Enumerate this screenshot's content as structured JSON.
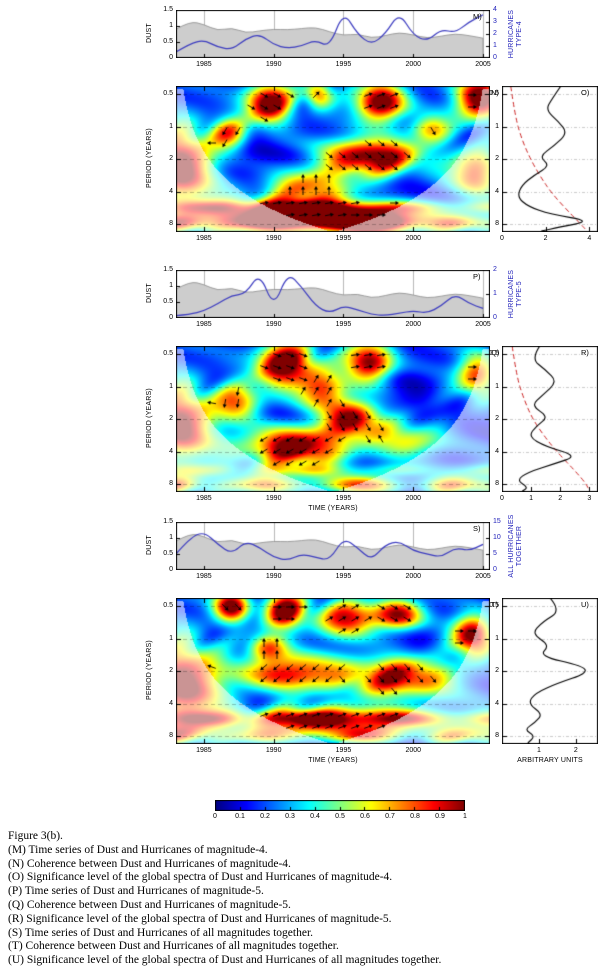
{
  "figure": {
    "caption_title": "Figure 3(b).",
    "caption_lines": [
      "(M) Time series of Dust and Hurricanes of magnitude-4.",
      "(N) Coherence between Dust and  Hurricanes of magnitude-4.",
      "(O) Significance level of the global spectra of Dust and Hurricanes of magnitude-4.",
      "(P) Time series of Dust and Hurricanes of magnitude-5.",
      "(Q) Coherence between Dust and Hurricanes of magnitude-5.",
      "(R) Significance level of the global spectra of Dust and Hurricanes of magnitude-5.",
      "(S) Time series of Dust and Hurricanes of all magnitudes together.",
      "(T) Coherence between Dust and Hurricanes of all magnitudes together.",
      "(U) Significance level of the global spectra of Dust and Hurricanes of all magnitudes together."
    ]
  },
  "colorbar": {
    "ticks": [
      "0",
      "0.1",
      "0.2",
      "0.3",
      "0.4",
      "0.5",
      "0.6",
      "0.7",
      "0.8",
      "0.9",
      "1"
    ]
  },
  "sections": [
    {
      "ids": {
        "ts": "M",
        "wv": "N",
        "sig": "O"
      },
      "letters": {
        "ts": "M)",
        "wv": "N)",
        "sig": "O)"
      },
      "labels": {
        "left": "DUST",
        "right": "HURRICANES\nTYPE-4",
        "period": "PERIOD (YEARS)",
        "time": "",
        "sig_x": ""
      },
      "ts": {
        "left_ticks": [
          "0",
          "0.5",
          "1",
          "1.5"
        ],
        "right_ticks": [
          "0",
          "1",
          "2",
          "3",
          "4"
        ],
        "x_ticks": [
          "1985",
          "1990",
          "1995",
          "2000",
          "2005"
        ]
      },
      "wv": {
        "y_ticks": [
          "0.5",
          "1",
          "2",
          "4",
          "8"
        ],
        "x_ticks": [
          "1985",
          "1990",
          "1995",
          "2000"
        ]
      },
      "sig": {
        "x_ticks": [
          "0",
          "2",
          "4"
        ]
      }
    },
    {
      "ids": {
        "ts": "P",
        "wv": "Q",
        "sig": "R"
      },
      "letters": {
        "ts": "P)",
        "wv": "Q)",
        "sig": "R)"
      },
      "labels": {
        "left": "DUST",
        "right": "HURRICANES\nTYPE-5",
        "period": "PERIOD (YEARS)",
        "time": "TIME (YEARS)",
        "sig_x": ""
      },
      "ts": {
        "left_ticks": [
          "0",
          "0.5",
          "1",
          "1.5"
        ],
        "right_ticks": [
          "0",
          "1",
          "2"
        ],
        "x_ticks": [
          "1985",
          "1990",
          "1995",
          "2000",
          "2005"
        ]
      },
      "wv": {
        "y_ticks": [
          "0.5",
          "1",
          "2",
          "4",
          "8"
        ],
        "x_ticks": [
          "1985",
          "1990",
          "1995",
          "2000"
        ]
      },
      "sig": {
        "x_ticks": [
          "0",
          "1",
          "2",
          "3"
        ]
      }
    },
    {
      "ids": {
        "ts": "S",
        "wv": "T",
        "sig": "U"
      },
      "letters": {
        "ts": "S)",
        "wv": "T)",
        "sig": "U)"
      },
      "labels": {
        "left": "DUST",
        "right": "ALL HURRICANES\nTOGETHER",
        "period": "PERIOD (YEARS)",
        "time": "TIME (YEARS)",
        "sig_x": "ARBITRARY UNITS"
      },
      "ts": {
        "left_ticks": [
          "0",
          "0.5",
          "1",
          "1.5"
        ],
        "right_ticks": [
          "0",
          "5",
          "10",
          "15"
        ],
        "x_ticks": [
          "1985",
          "1990",
          "1995",
          "2000",
          "2005"
        ]
      },
      "wv": {
        "y_ticks": [
          "0.5",
          "1",
          "2",
          "4",
          "8"
        ],
        "x_ticks": [
          "1985",
          "1990",
          "1995",
          "2000"
        ]
      },
      "sig": {
        "x_ticks": [
          "1",
          "2"
        ]
      }
    }
  ],
  "chart_data": [
    {
      "id": "M",
      "type": "area+line",
      "xlim": [
        1983,
        2005.5
      ],
      "dust_ylim": [
        0,
        1.5
      ],
      "hurr_ylim": [
        0,
        4
      ],
      "x": [
        1983,
        1984,
        1985,
        1986,
        1987,
        1988,
        1989,
        1990,
        1991,
        1992,
        1993,
        1994,
        1995,
        1996,
        1997,
        1998,
        1999,
        2000,
        2001,
        2002,
        2003,
        2004,
        2005
      ],
      "dust": [
        0.9,
        1.15,
        1.05,
        0.85,
        0.95,
        0.78,
        0.85,
        0.9,
        0.88,
        0.92,
        0.96,
        0.82,
        0.7,
        0.76,
        0.62,
        0.7,
        0.8,
        0.72,
        0.62,
        0.68,
        0.76,
        0.7,
        0.62
      ],
      "hurricanes": [
        0.5,
        1.2,
        1.5,
        0.9,
        0.7,
        1.6,
        2.0,
        1.1,
        0.8,
        1.0,
        1.5,
        0.9,
        3.9,
        2.0,
        1.1,
        2.0,
        3.8,
        1.9,
        1.4,
        2.4,
        2.1,
        3.0,
        3.6
      ]
    },
    {
      "id": "N",
      "type": "wavelet-coherence",
      "xlim": [
        1983,
        2005.5
      ],
      "period_lim": [
        0.42,
        9.5
      ],
      "coherence_range": [
        0,
        1
      ],
      "blobs": [
        {
          "t": 1989.6,
          "p": 0.6,
          "rx": 1.2,
          "ry": 0.45,
          "v": 1.0,
          "phase": -30
        },
        {
          "t": 1997.6,
          "p": 0.6,
          "rx": 1.3,
          "ry": 0.45,
          "v": 1.0,
          "phase": 20
        },
        {
          "t": 2004.8,
          "p": 0.55,
          "rx": 1.2,
          "ry": 0.5,
          "v": 0.95,
          "phase": 0
        },
        {
          "t": 1993.2,
          "p": 0.5,
          "rx": 0.7,
          "ry": 0.3,
          "v": 0.65,
          "phase": 45
        },
        {
          "t": 1997.2,
          "p": 1.9,
          "rx": 2.4,
          "ry": 0.4,
          "v": 0.97,
          "phase": -40
        },
        {
          "t": 1983.3,
          "p": 2.3,
          "rx": 1.6,
          "ry": 0.8,
          "v": 0.95,
          "phase": 180
        },
        {
          "t": 1986.8,
          "p": 1.15,
          "rx": 1.0,
          "ry": 0.35,
          "v": 0.6,
          "phase": -120
        },
        {
          "t": 1990.5,
          "p": 6.6,
          "rx": 4.5,
          "ry": 0.35,
          "v": 0.85,
          "phase": 10
        },
        {
          "t": 1997.5,
          "p": 7.2,
          "rx": 3.0,
          "ry": 0.3,
          "v": 0.7,
          "phase": 0
        },
        {
          "t": 2001.2,
          "p": 1.05,
          "rx": 1.0,
          "ry": 0.3,
          "v": 0.55,
          "phase": -60
        },
        {
          "t": 1992.5,
          "p": 3.6,
          "rx": 2.2,
          "ry": 0.4,
          "v": 0.6,
          "phase": 90
        },
        {
          "t": 2004.5,
          "p": 2.6,
          "rx": 1.2,
          "ry": 0.5,
          "v": 0.7,
          "phase": 0
        }
      ],
      "bands": [
        {
          "p": 7.9,
          "ry": 0.18,
          "v": 0.5
        },
        {
          "p": 5.6,
          "ry": 0.15,
          "v": 0.35
        }
      ]
    },
    {
      "id": "O",
      "type": "line",
      "xlim": [
        0,
        4.4
      ],
      "black": [
        [
          0.42,
          2.7
        ],
        [
          0.55,
          2.3
        ],
        [
          0.7,
          2.0
        ],
        [
          0.9,
          2.6
        ],
        [
          1.15,
          3.0
        ],
        [
          1.5,
          2.4
        ],
        [
          1.9,
          1.7
        ],
        [
          2.3,
          2.2
        ],
        [
          2.8,
          1.5
        ],
        [
          3.5,
          0.9
        ],
        [
          4.5,
          0.7
        ],
        [
          5.5,
          1.2
        ],
        [
          6.5,
          2.2
        ],
        [
          7.5,
          4.1
        ],
        [
          8.6,
          2.6
        ],
        [
          9.3,
          1.8
        ]
      ],
      "red": [
        [
          0.42,
          0.4
        ],
        [
          0.8,
          0.6
        ],
        [
          1.3,
          0.9
        ],
        [
          2.0,
          1.3
        ],
        [
          3.0,
          1.8
        ],
        [
          4.2,
          2.3
        ],
        [
          6.0,
          3.0
        ],
        [
          8.0,
          3.6
        ],
        [
          9.3,
          3.9
        ]
      ]
    },
    {
      "id": "P",
      "type": "area+line",
      "xlim": [
        1983,
        2005.5
      ],
      "dust_ylim": [
        0,
        1.5
      ],
      "hurr_ylim": [
        0,
        2
      ],
      "x": [
        1983,
        1984,
        1985,
        1986,
        1987,
        1988,
        1989,
        1990,
        1991,
        1992,
        1993,
        1994,
        1995,
        1996,
        1997,
        1998,
        1999,
        2000,
        2001,
        2002,
        2003,
        2004,
        2005
      ],
      "dust": [
        0.9,
        1.15,
        1.05,
        0.85,
        0.95,
        0.78,
        0.85,
        0.9,
        0.88,
        0.92,
        0.96,
        0.82,
        0.7,
        0.76,
        0.62,
        0.7,
        0.8,
        0.72,
        0.62,
        0.68,
        0.76,
        0.7,
        0.62
      ],
      "hurricanes": [
        0.1,
        0.15,
        0.3,
        0.6,
        0.95,
        1.0,
        1.9,
        0.4,
        1.9,
        1.3,
        0.5,
        0.2,
        0.5,
        0.35,
        0.15,
        0.1,
        0.2,
        0.3,
        0.2,
        0.5,
        1.0,
        0.6,
        0.4
      ]
    },
    {
      "id": "Q",
      "type": "wavelet-coherence",
      "xlim": [
        1983,
        2005.5
      ],
      "period_lim": [
        0.42,
        9.5
      ],
      "coherence_range": [
        0,
        1
      ],
      "blobs": [
        {
          "t": 1990.8,
          "p": 0.62,
          "rx": 1.6,
          "ry": 0.5,
          "v": 1.0,
          "phase": -20
        },
        {
          "t": 1996.8,
          "p": 0.6,
          "rx": 1.2,
          "ry": 0.45,
          "v": 0.95,
          "phase": 10
        },
        {
          "t": 1991.5,
          "p": 3.6,
          "rx": 2.6,
          "ry": 0.45,
          "v": 0.95,
          "phase": -150
        },
        {
          "t": 1995.8,
          "p": 2.0,
          "rx": 1.4,
          "ry": 0.4,
          "v": 0.85,
          "phase": -60
        },
        {
          "t": 1983.3,
          "p": 2.2,
          "rx": 1.6,
          "ry": 0.8,
          "v": 0.9,
          "phase": 170
        },
        {
          "t": 1987.5,
          "p": 1.4,
          "rx": 1.2,
          "ry": 0.4,
          "v": 0.65,
          "phase": -100
        },
        {
          "t": 1993.5,
          "p": 1.1,
          "rx": 1.2,
          "ry": 0.4,
          "v": 0.6,
          "phase": 60
        },
        {
          "t": 1999.5,
          "p": 3.2,
          "rx": 1.6,
          "ry": 0.4,
          "v": 0.55,
          "phase": 120
        },
        {
          "t": 2004.6,
          "p": 0.8,
          "rx": 1.0,
          "ry": 0.5,
          "v": 0.7,
          "phase": 0
        }
      ],
      "bands": [
        {
          "p": 8.2,
          "ry": 0.2,
          "v": 0.6
        },
        {
          "p": 6.0,
          "ry": 0.15,
          "v": 0.3
        }
      ]
    },
    {
      "id": "R",
      "type": "line",
      "xlim": [
        0,
        3.3
      ],
      "black": [
        [
          0.42,
          1.3
        ],
        [
          0.55,
          1.0
        ],
        [
          0.7,
          1.5
        ],
        [
          0.9,
          1.9
        ],
        [
          1.2,
          1.4
        ],
        [
          1.5,
          1.0
        ],
        [
          1.9,
          1.6
        ],
        [
          2.3,
          1.2
        ],
        [
          2.9,
          0.9
        ],
        [
          3.6,
          1.5
        ],
        [
          4.4,
          2.6
        ],
        [
          5.2,
          1.8
        ],
        [
          6.2,
          0.9
        ],
        [
          7.4,
          0.5
        ],
        [
          8.6,
          0.9
        ],
        [
          9.3,
          0.7
        ]
      ],
      "red": [
        [
          0.42,
          0.35
        ],
        [
          0.8,
          0.5
        ],
        [
          1.3,
          0.75
        ],
        [
          2.0,
          1.05
        ],
        [
          3.0,
          1.5
        ],
        [
          4.2,
          1.95
        ],
        [
          6.0,
          2.5
        ],
        [
          8.0,
          2.9
        ],
        [
          9.3,
          3.0
        ]
      ]
    },
    {
      "id": "S",
      "type": "area+line",
      "xlim": [
        1983,
        2005.5
      ],
      "dust_ylim": [
        0,
        1.5
      ],
      "hurr_ylim": [
        0,
        15
      ],
      "x": [
        1983,
        1984,
        1985,
        1986,
        1987,
        1988,
        1989,
        1990,
        1991,
        1992,
        1993,
        1994,
        1995,
        1996,
        1997,
        1998,
        1999,
        2000,
        2001,
        2002,
        2003,
        2004,
        2005
      ],
      "dust": [
        0.9,
        1.15,
        1.05,
        0.85,
        0.95,
        0.78,
        0.85,
        0.9,
        0.88,
        0.92,
        0.96,
        0.82,
        0.7,
        0.76,
        0.62,
        0.7,
        0.8,
        0.72,
        0.62,
        0.68,
        0.76,
        0.7,
        0.62
      ],
      "hurricanes": [
        5,
        10,
        12,
        8,
        5,
        9,
        7,
        4,
        3,
        5,
        4,
        3,
        10,
        7,
        3,
        8,
        9,
        6,
        5,
        4,
        7,
        6,
        8
      ]
    },
    {
      "id": "T",
      "type": "wavelet-coherence",
      "xlim": [
        1983,
        2005.5
      ],
      "period_lim": [
        0.42,
        9.5
      ],
      "coherence_range": [
        0,
        1
      ],
      "blobs": [
        {
          "t": 1987.0,
          "p": 0.5,
          "rx": 0.9,
          "ry": 0.35,
          "v": 0.9,
          "phase": -45
        },
        {
          "t": 1990.8,
          "p": 0.55,
          "rx": 1.1,
          "ry": 0.4,
          "v": 0.95,
          "phase": 0
        },
        {
          "t": 1995.5,
          "p": 0.65,
          "rx": 1.6,
          "ry": 0.4,
          "v": 0.8,
          "phase": 30
        },
        {
          "t": 1999.0,
          "p": 0.6,
          "rx": 1.2,
          "ry": 0.35,
          "v": 0.75,
          "phase": -30
        },
        {
          "t": 2004.3,
          "p": 0.95,
          "rx": 1.0,
          "ry": 0.45,
          "v": 0.95,
          "phase": 0
        },
        {
          "t": 1983.5,
          "p": 2.6,
          "rx": 1.8,
          "ry": 0.9,
          "v": 0.9,
          "phase": 160
        },
        {
          "t": 1991.0,
          "p": 2.1,
          "rx": 2.6,
          "ry": 0.4,
          "v": 0.8,
          "phase": -140
        },
        {
          "t": 1999.0,
          "p": 2.3,
          "rx": 2.6,
          "ry": 0.45,
          "v": 0.85,
          "phase": -50
        },
        {
          "t": 1994.5,
          "p": 5.5,
          "rx": 5.0,
          "ry": 0.3,
          "v": 0.6,
          "phase": 20
        },
        {
          "t": 1989.5,
          "p": 1.2,
          "rx": 1.0,
          "ry": 0.3,
          "v": 0.6,
          "phase": 90
        }
      ],
      "bands": [
        {
          "p": 5.6,
          "ry": 0.18,
          "v": 0.5
        },
        {
          "p": 7.2,
          "ry": 0.15,
          "v": 0.3
        },
        {
          "p": 8.3,
          "ry": 0.15,
          "v": 0.4
        }
      ]
    },
    {
      "id": "U",
      "type": "line",
      "xlim": [
        0,
        2.6
      ],
      "black": [
        [
          0.42,
          1.3
        ],
        [
          0.55,
          1.6
        ],
        [
          0.7,
          1.1
        ],
        [
          0.9,
          0.8
        ],
        [
          1.15,
          1.3
        ],
        [
          1.45,
          1.0
        ],
        [
          1.8,
          2.2
        ],
        [
          2.1,
          2.3
        ],
        [
          2.6,
          1.5
        ],
        [
          3.2,
          0.9
        ],
        [
          4.0,
          0.7
        ],
        [
          5.0,
          1.1
        ],
        [
          6.0,
          0.9
        ],
        [
          7.0,
          0.6
        ],
        [
          8.0,
          0.9
        ],
        [
          9.3,
          0.7
        ]
      ]
    }
  ]
}
